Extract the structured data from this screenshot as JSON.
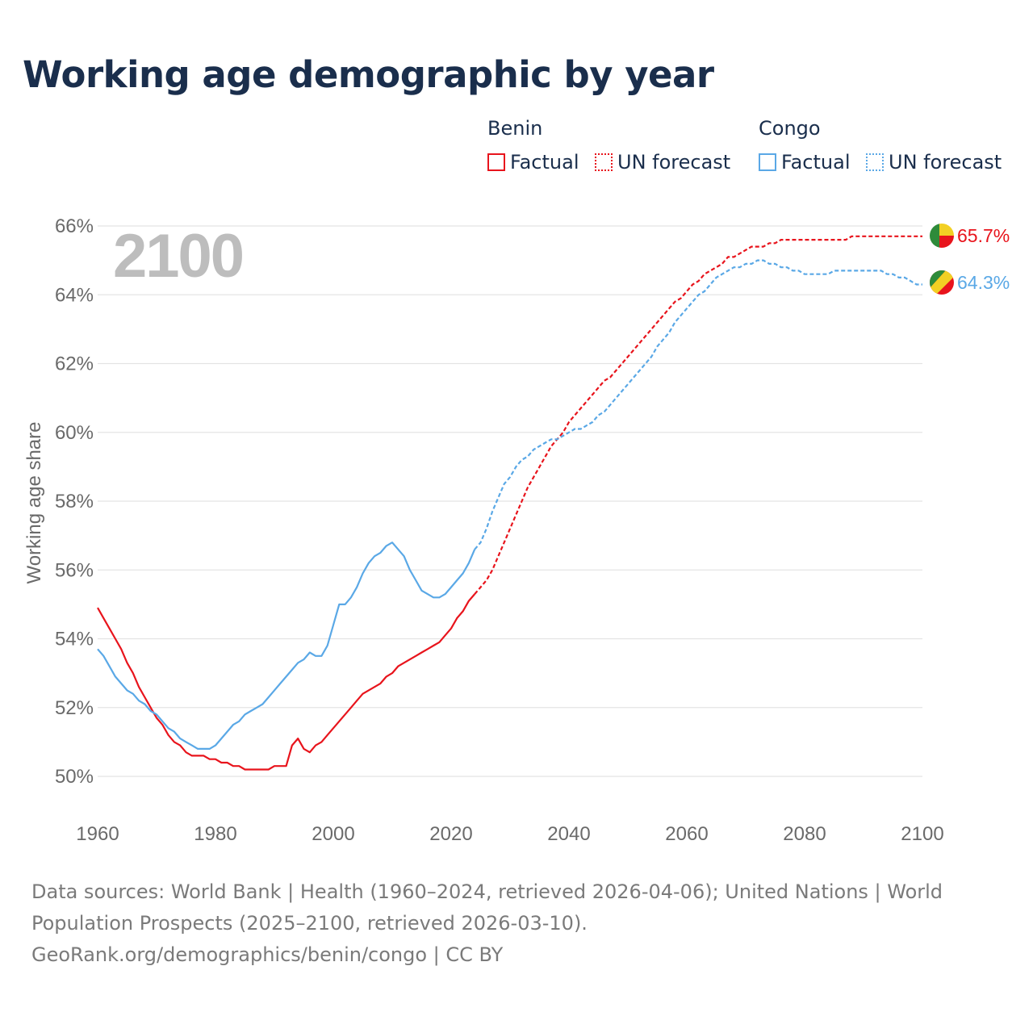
{
  "title": "Working age demographic by year",
  "legend": {
    "groups": [
      {
        "name": "Benin",
        "items": [
          {
            "label": "Factual",
            "style": "solid"
          },
          {
            "label": "UN forecast",
            "style": "dotted"
          }
        ]
      },
      {
        "name": "Congo",
        "items": [
          {
            "label": "Factual",
            "style": "solid"
          },
          {
            "label": "UN forecast",
            "style": "dotted"
          }
        ]
      }
    ]
  },
  "colors": {
    "benin": "#e8141c",
    "congo": "#5aa8e6",
    "grid": "#e4e4e4",
    "text": "#1a2e4c",
    "tick": "#6a6a6a",
    "year": "#bdbdbd"
  },
  "footer": {
    "sources": "Data sources: World Bank | Health (1960–2024, retrieved 2026-04-06); United Nations | World Population Prospects (2025–2100, retrieved 2026-03-10).",
    "credit": "GeoRank.org/demographics/benin/congo | CC BY"
  },
  "chart_data": {
    "type": "line",
    "title": "Working age demographic by year",
    "current_year": "2100",
    "xlabel": "",
    "ylabel": "Working age share",
    "xlim": [
      1960,
      2100
    ],
    "ylim": [
      49.0,
      66.4
    ],
    "xticks": [
      1960,
      1980,
      2000,
      2020,
      2040,
      2060,
      2080,
      2100
    ],
    "xtick_labels": [
      "1960",
      "1980",
      "2000",
      "2020",
      "2040",
      "2060",
      "2080",
      "2100"
    ],
    "yticks": [
      50,
      52,
      54,
      56,
      58,
      60,
      62,
      64,
      66
    ],
    "ytick_labels": [
      "50%",
      "52%",
      "54%",
      "56%",
      "58%",
      "60%",
      "62%",
      "64%",
      "66%"
    ],
    "grid": true,
    "series": [
      {
        "name": "Benin",
        "color_key": "benin",
        "end_label": "65.7%",
        "factual_years": [
          1960,
          1961,
          1962,
          1963,
          1964,
          1965,
          1966,
          1967,
          1968,
          1969,
          1970,
          1971,
          1972,
          1973,
          1974,
          1975,
          1976,
          1977,
          1978,
          1979,
          1980,
          1981,
          1982,
          1983,
          1984,
          1985,
          1986,
          1987,
          1988,
          1989,
          1990,
          1991,
          1992,
          1993,
          1994,
          1995,
          1996,
          1997,
          1998,
          1999,
          2000,
          2001,
          2002,
          2003,
          2004,
          2005,
          2006,
          2007,
          2008,
          2009,
          2010,
          2011,
          2012,
          2013,
          2014,
          2015,
          2016,
          2017,
          2018,
          2019,
          2020,
          2021,
          2022,
          2023,
          2024
        ],
        "factual_values": [
          54.9,
          54.6,
          54.3,
          54.0,
          53.7,
          53.3,
          53.0,
          52.6,
          52.3,
          52.0,
          51.7,
          51.5,
          51.2,
          51.0,
          50.9,
          50.7,
          50.6,
          50.6,
          50.6,
          50.5,
          50.5,
          50.4,
          50.4,
          50.3,
          50.3,
          50.2,
          50.2,
          50.2,
          50.2,
          50.2,
          50.3,
          50.3,
          50.3,
          50.9,
          51.1,
          50.8,
          50.7,
          50.9,
          51.0,
          51.2,
          51.4,
          51.6,
          51.8,
          52.0,
          52.2,
          52.4,
          52.5,
          52.6,
          52.7,
          52.9,
          53.0,
          53.2,
          53.3,
          53.4,
          53.5,
          53.6,
          53.7,
          53.8,
          53.9,
          54.1,
          54.3,
          54.6,
          54.8,
          55.1,
          55.3
        ],
        "forecast_years": [
          2024,
          2025,
          2026,
          2027,
          2028,
          2029,
          2030,
          2031,
          2032,
          2033,
          2034,
          2035,
          2036,
          2037,
          2038,
          2039,
          2040,
          2041,
          2042,
          2043,
          2044,
          2045,
          2046,
          2047,
          2048,
          2049,
          2050,
          2051,
          2052,
          2053,
          2054,
          2055,
          2056,
          2057,
          2058,
          2059,
          2060,
          2061,
          2062,
          2063,
          2064,
          2065,
          2066,
          2067,
          2068,
          2069,
          2070,
          2071,
          2072,
          2073,
          2074,
          2075,
          2076,
          2077,
          2078,
          2079,
          2080,
          2081,
          2082,
          2083,
          2084,
          2085,
          2086,
          2087,
          2088,
          2089,
          2090,
          2091,
          2092,
          2093,
          2094,
          2095,
          2096,
          2097,
          2098,
          2099,
          2100
        ],
        "forecast_values": [
          55.3,
          55.5,
          55.7,
          56.0,
          56.4,
          56.8,
          57.2,
          57.6,
          58.0,
          58.4,
          58.7,
          59.0,
          59.3,
          59.6,
          59.8,
          60.0,
          60.3,
          60.5,
          60.7,
          60.9,
          61.1,
          61.3,
          61.5,
          61.6,
          61.8,
          62.0,
          62.2,
          62.4,
          62.6,
          62.8,
          63.0,
          63.2,
          63.4,
          63.6,
          63.8,
          63.9,
          64.1,
          64.3,
          64.4,
          64.6,
          64.7,
          64.8,
          64.9,
          65.1,
          65.1,
          65.2,
          65.3,
          65.4,
          65.4,
          65.4,
          65.5,
          65.5,
          65.6,
          65.6,
          65.6,
          65.6,
          65.6,
          65.6,
          65.6,
          65.6,
          65.6,
          65.6,
          65.6,
          65.6,
          65.7,
          65.7,
          65.7,
          65.7,
          65.7,
          65.7,
          65.7,
          65.7,
          65.7,
          65.7,
          65.7,
          65.7,
          65.7
        ]
      },
      {
        "name": "Congo",
        "color_key": "congo",
        "end_label": "64.3%",
        "factual_years": [
          1960,
          1961,
          1962,
          1963,
          1964,
          1965,
          1966,
          1967,
          1968,
          1969,
          1970,
          1971,
          1972,
          1973,
          1974,
          1975,
          1976,
          1977,
          1978,
          1979,
          1980,
          1981,
          1982,
          1983,
          1984,
          1985,
          1986,
          1987,
          1988,
          1989,
          1990,
          1991,
          1992,
          1993,
          1994,
          1995,
          1996,
          1997,
          1998,
          1999,
          2000,
          2001,
          2002,
          2003,
          2004,
          2005,
          2006,
          2007,
          2008,
          2009,
          2010,
          2011,
          2012,
          2013,
          2014,
          2015,
          2016,
          2017,
          2018,
          2019,
          2020,
          2021,
          2022,
          2023,
          2024
        ],
        "factual_values": [
          53.7,
          53.5,
          53.2,
          52.9,
          52.7,
          52.5,
          52.4,
          52.2,
          52.1,
          51.9,
          51.8,
          51.6,
          51.4,
          51.3,
          51.1,
          51.0,
          50.9,
          50.8,
          50.8,
          50.8,
          50.9,
          51.1,
          51.3,
          51.5,
          51.6,
          51.8,
          51.9,
          52.0,
          52.1,
          52.3,
          52.5,
          52.7,
          52.9,
          53.1,
          53.3,
          53.4,
          53.6,
          53.5,
          53.5,
          53.8,
          54.4,
          55.0,
          55.0,
          55.2,
          55.5,
          55.9,
          56.2,
          56.4,
          56.5,
          56.7,
          56.8,
          56.6,
          56.4,
          56.0,
          55.7,
          55.4,
          55.3,
          55.2,
          55.2,
          55.3,
          55.5,
          55.7,
          55.9,
          56.2,
          56.6
        ],
        "forecast_years": [
          2024,
          2025,
          2026,
          2027,
          2028,
          2029,
          2030,
          2031,
          2032,
          2033,
          2034,
          2035,
          2036,
          2037,
          2038,
          2039,
          2040,
          2041,
          2042,
          2043,
          2044,
          2045,
          2046,
          2047,
          2048,
          2049,
          2050,
          2051,
          2052,
          2053,
          2054,
          2055,
          2056,
          2057,
          2058,
          2059,
          2060,
          2061,
          2062,
          2063,
          2064,
          2065,
          2066,
          2067,
          2068,
          2069,
          2070,
          2071,
          2072,
          2073,
          2074,
          2075,
          2076,
          2077,
          2078,
          2079,
          2080,
          2081,
          2082,
          2083,
          2084,
          2085,
          2086,
          2087,
          2088,
          2089,
          2090,
          2091,
          2092,
          2093,
          2094,
          2095,
          2096,
          2097,
          2098,
          2099,
          2100
        ],
        "forecast_values": [
          56.6,
          56.8,
          57.2,
          57.7,
          58.1,
          58.5,
          58.7,
          59.0,
          59.2,
          59.3,
          59.5,
          59.6,
          59.7,
          59.8,
          59.8,
          59.9,
          60.0,
          60.1,
          60.1,
          60.2,
          60.3,
          60.5,
          60.6,
          60.8,
          61.0,
          61.2,
          61.4,
          61.6,
          61.8,
          62.0,
          62.2,
          62.5,
          62.7,
          62.9,
          63.2,
          63.4,
          63.6,
          63.8,
          64.0,
          64.1,
          64.3,
          64.5,
          64.6,
          64.7,
          64.8,
          64.8,
          64.9,
          64.9,
          65.0,
          65.0,
          64.9,
          64.9,
          64.8,
          64.8,
          64.7,
          64.7,
          64.6,
          64.6,
          64.6,
          64.6,
          64.6,
          64.7,
          64.7,
          64.7,
          64.7,
          64.7,
          64.7,
          64.7,
          64.7,
          64.7,
          64.6,
          64.6,
          64.5,
          64.5,
          64.4,
          64.3,
          64.3
        ]
      }
    ]
  }
}
